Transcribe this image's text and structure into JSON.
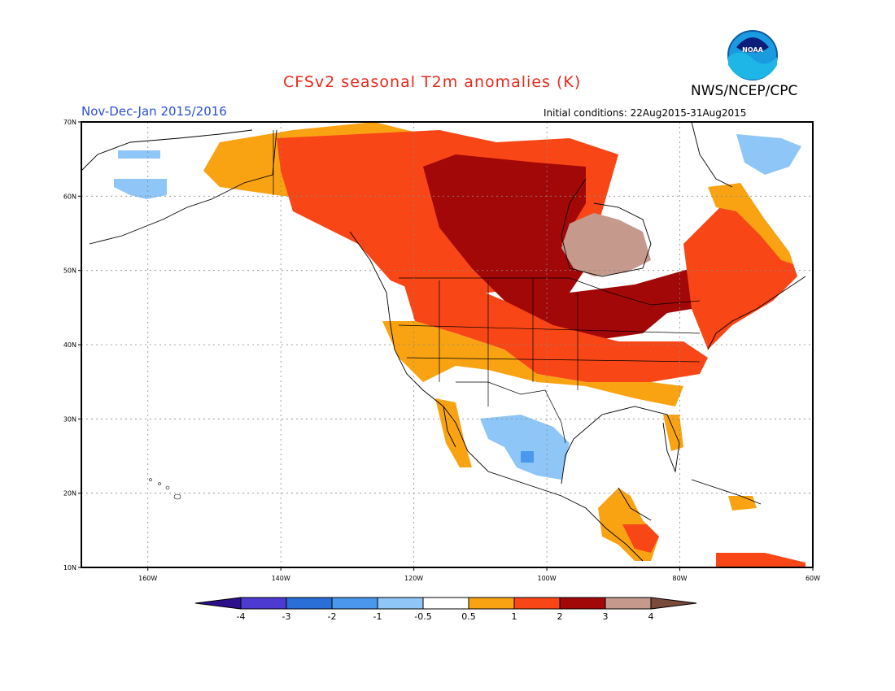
{
  "header": {
    "title": "CFSv2 seasonal T2m anomalies (K)",
    "agency": "NWS/NCEP/CPC",
    "logo_text": "NOAA",
    "period": "Nov-Dec-Jan 2015/2016",
    "initial_conditions": "Initial conditions: 22Aug2015-31Aug2015"
  },
  "axes": {
    "lat_labels": [
      "70N",
      "60N",
      "50N",
      "40N",
      "30N",
      "20N",
      "10N"
    ],
    "lon_labels": [
      "160W",
      "140W",
      "120W",
      "100W",
      "80W",
      "60W"
    ],
    "lat_range": [
      10,
      70
    ],
    "lon_range": [
      -170,
      -60
    ],
    "grid": "dotted"
  },
  "colorbar": {
    "labels": [
      "-4",
      "-3",
      "-2",
      "-1",
      "-0.5",
      "0.5",
      "1",
      "2",
      "3",
      "4"
    ],
    "colors": [
      "#2c0f8a",
      "#4d3ad0",
      "#2a6ed8",
      "#4a98ee",
      "#8ec6f7",
      "#ffffff",
      "#f9a313",
      "#f84616",
      "#a30808",
      "#c59a8c",
      "#7a4a3a"
    ]
  },
  "colors": {
    "title": "#e8291a",
    "period": "#2a4fd8"
  }
}
